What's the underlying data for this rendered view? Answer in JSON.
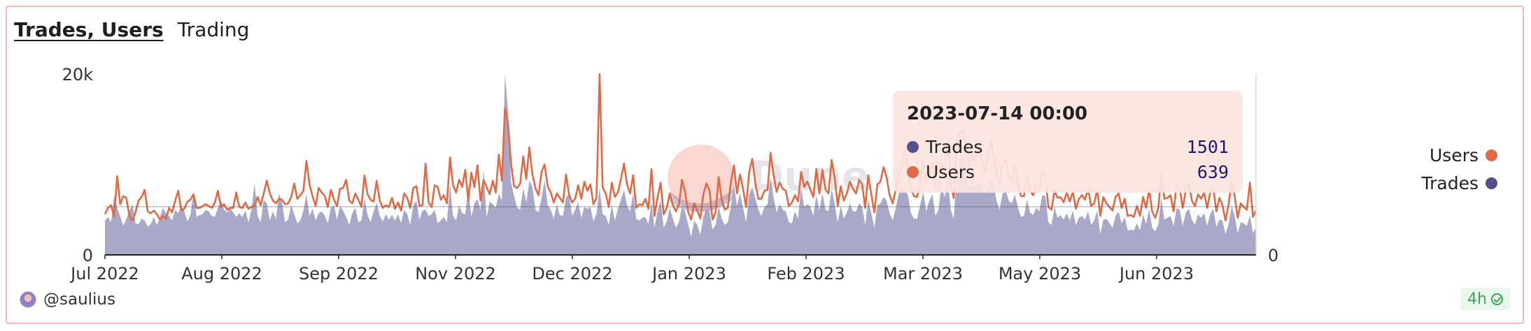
{
  "tabs": [
    {
      "label": "Trades, Users",
      "active": true
    },
    {
      "label": "Trading",
      "active": false
    }
  ],
  "tooltip": {
    "title": "2023-07-14 00:00",
    "rows": [
      {
        "name": "Trades",
        "value": "1501",
        "color": "#54508f"
      },
      {
        "name": "Users",
        "value": "639",
        "color": "#e06a45"
      }
    ]
  },
  "legend": [
    {
      "name": "Users",
      "color": "#e06a45"
    },
    {
      "name": "Trades",
      "color": "#54508f"
    }
  ],
  "watermark": "Dune",
  "footer": {
    "author": "@saulius",
    "refresh": "4h"
  },
  "chart_data": {
    "type": "area+line",
    "x_tick_labels": [
      "Jul 2022",
      "Aug 2022",
      "Sep 2022",
      "Nov 2022",
      "Dec 2022",
      "Jan 2023",
      "Feb 2023",
      "Mar 2023",
      "May 2023",
      "Jun 2023"
    ],
    "y_left_ticks": [
      "20k",
      "0"
    ],
    "y_right_ticks": [
      "0"
    ],
    "ylim": [
      0,
      20000
    ],
    "grid": false,
    "legend_position": "right",
    "points_per_series": 380,
    "series": [
      {
        "name": "Trades",
        "kind": "area",
        "color": "#a9a8c8",
        "values": [
          3800,
          4200,
          3600,
          6500,
          5200,
          4300,
          3200,
          4000,
          4800,
          5600,
          3500,
          3400,
          4000,
          3800,
          3100,
          3400,
          4200,
          3300,
          4100,
          5200,
          4600,
          4300,
          3800,
          5000,
          4600,
          5400,
          4800,
          3700,
          4400,
          6900,
          4200,
          4400,
          4500,
          5000,
          4800,
          4300,
          4200,
          5200,
          6000,
          5000,
          4700,
          5200,
          4700,
          4200,
          4600,
          4200,
          4900,
          3600,
          5000,
          7900,
          4300,
          3600,
          6100,
          5700,
          3800,
          4800,
          4000,
          6800,
          5800,
          3600,
          3900,
          5500,
          4500,
          3500,
          3800,
          4900,
          6700,
          4300,
          5100,
          3800,
          4600,
          4800,
          4300,
          3500,
          5200,
          5500,
          3900,
          5400,
          4900,
          4200,
          3300,
          4600,
          5200,
          3600,
          3800,
          6200,
          4400,
          3600,
          4800,
          5800,
          4300,
          3700,
          4500,
          3900,
          4400,
          3800,
          4500,
          3500,
          5000,
          4500,
          3300,
          5500,
          6000,
          3900,
          4900,
          5000,
          4300,
          4500,
          5000,
          3500,
          3800,
          4200,
          3600,
          7800,
          4300,
          3800,
          5500,
          4600,
          4500,
          7400,
          4200,
          5700,
          6200,
          5000,
          9400,
          4100,
          5900,
          5600,
          5200,
          6800,
          6000,
          20000,
          16000,
          8000,
          6500,
          5200,
          5000,
          7400,
          5800,
          8200,
          7500,
          5000,
          4700,
          6300,
          8300,
          5500,
          5000,
          4000,
          5600,
          4400,
          4300,
          6300,
          6800,
          4300,
          5000,
          5800,
          4100,
          5300,
          5100,
          5300,
          3700,
          4600,
          7400,
          4500,
          4300,
          3300,
          5500,
          3800,
          5100,
          6100,
          7200,
          5500,
          4800,
          6800,
          4000,
          3800,
          4100,
          4200,
          3400,
          5900,
          3000,
          4800,
          6100,
          3000,
          3700,
          5200,
          4000,
          3000,
          3600,
          5400,
          4800,
          3400,
          2000,
          3800,
          3300,
          2200,
          4200,
          5200,
          4800,
          2800,
          3300,
          5400,
          4000,
          3300,
          3600,
          5300,
          7800,
          5400,
          6800,
          5200,
          3600,
          6700,
          7500,
          6300,
          5000,
          4300,
          5300,
          5600,
          8600,
          6300,
          4700,
          5600,
          5000,
          4800,
          3600,
          3500,
          4800,
          4000,
          7500,
          5300,
          5600,
          5400,
          4300,
          6600,
          4900,
          6800,
          5000,
          4800,
          7300,
          5600,
          3600,
          5400,
          4000,
          4700,
          5700,
          4800,
          4800,
          5700,
          5300,
          3300,
          6100,
          4600,
          3000,
          5500,
          5700,
          6400,
          6000,
          4600,
          3800,
          5200,
          6800,
          7500,
          7200,
          6600,
          4600,
          4000,
          4000,
          5500,
          7000,
          4800,
          6000,
          6700,
          4300,
          5000,
          7900,
          6300,
          8900,
          5000,
          4000,
          9100,
          10500,
          11200,
          9900,
          7200,
          8800,
          7400,
          8400,
          7400,
          6800,
          7400,
          8300,
          8000,
          6000,
          5000,
          6800,
          7200,
          6000,
          5700,
          6700,
          5300,
          4200,
          4300,
          6100,
          4700,
          4400,
          5200,
          4800,
          6600,
          6500,
          3600,
          3300,
          5300,
          4100,
          4400,
          3900,
          4600,
          3800,
          4900,
          3300,
          4100,
          4300,
          3900,
          4800,
          3300,
          3800,
          4900,
          2300,
          3900,
          4000,
          3500,
          3000,
          4300,
          4800,
          3500,
          4200,
          2700,
          2800,
          2700,
          3500,
          2700,
          4500,
          3400,
          5100,
          3000,
          2600,
          3400,
          6300,
          3900,
          4100,
          4300,
          3200,
          5200,
          5000,
          3200,
          4700,
          5100,
          3900,
          3300,
          4500,
          4100,
          4600,
          3200,
          4500,
          5100,
          3100,
          3900,
          3800,
          2300,
          3400,
          5400,
          4300,
          2400,
          3600,
          3500,
          3200,
          4400,
          2400,
          3100
        ]
      },
      {
        "name": "Users",
        "kind": "line",
        "color": "#e06a45",
        "values": [
          4500,
          5200,
          5500,
          4200,
          8700,
          5600,
          6500,
          6300,
          4300,
          3800,
          4700,
          6000,
          6400,
          7200,
          4800,
          4600,
          4900,
          4500,
          3900,
          4300,
          4000,
          5200,
          4700,
          6000,
          7100,
          4900,
          5100,
          5900,
          6100,
          6700,
          5200,
          5200,
          5400,
          5600,
          5400,
          5200,
          5800,
          7100,
          5300,
          5600,
          5000,
          5200,
          5200,
          6900,
          5300,
          5200,
          5800,
          5100,
          5300,
          5500,
          6400,
          5500,
          6800,
          8200,
          6800,
          6000,
          5700,
          6200,
          6100,
          5600,
          5700,
          6400,
          7900,
          6200,
          6600,
          7100,
          10400,
          7800,
          6500,
          5400,
          7400,
          6900,
          6500,
          5300,
          7200,
          6100,
          5400,
          7300,
          7400,
          8300,
          6000,
          5700,
          6800,
          6100,
          5300,
          8800,
          6700,
          6100,
          5900,
          8200,
          6000,
          5200,
          5500,
          5300,
          6300,
          5100,
          5800,
          4900,
          6800,
          6300,
          5200,
          7400,
          7600,
          5400,
          5500,
          10100,
          5800,
          5300,
          7700,
          7500,
          6100,
          6600,
          5700,
          10800,
          7700,
          6900,
          8300,
          7500,
          9400,
          6000,
          9100,
          7500,
          9900,
          6000,
          8300,
          7500,
          6700,
          8200,
          6900,
          11100,
          8200,
          16200,
          14500,
          10100,
          7600,
          7400,
          7900,
          10900,
          8400,
          11900,
          8900,
          7400,
          6600,
          9200,
          10000,
          7600,
          6900,
          5800,
          6800,
          6300,
          5800,
          8900,
          6700,
          5800,
          6200,
          7700,
          6200,
          8100,
          7100,
          7800,
          5600,
          6300,
          20000,
          7500,
          6800,
          5300,
          8000,
          6400,
          6900,
          8400,
          10100,
          7800,
          6800,
          8800,
          5200,
          5600,
          5500,
          6200,
          5100,
          9500,
          4300,
          6400,
          8000,
          4500,
          5200,
          6800,
          5500,
          4800,
          5600,
          8300,
          7000,
          4800,
          3900,
          5700,
          4900,
          4000,
          6700,
          7900,
          7100,
          3900,
          4700,
          8600,
          6100,
          5000,
          5200,
          8000,
          9900,
          6800,
          8900,
          7300,
          5300,
          9200,
          10600,
          8000,
          6200,
          6200,
          7100,
          7200,
          11300,
          8800,
          7000,
          8000,
          7300,
          7100,
          5400,
          5800,
          6600,
          5900,
          9200,
          7500,
          8100,
          7300,
          6400,
          9500,
          6800,
          9400,
          7200,
          6800,
          10500,
          8500,
          5400,
          7600,
          6000,
          6800,
          8100,
          7300,
          6800,
          8300,
          7800,
          5200,
          8800,
          6700,
          4700,
          7800,
          8100,
          9700,
          8600,
          6600,
          5700,
          7200,
          8900,
          9800,
          11800,
          9100,
          7300,
          6500,
          6400,
          7800,
          10300,
          8000,
          8700,
          10200,
          7500,
          7000,
          10300,
          9200,
          12500,
          7800,
          6300,
          12200,
          13600,
          13800,
          12400,
          9600,
          11300,
          10400,
          12000,
          10700,
          9100,
          10500,
          12600,
          11200,
          9000,
          7800,
          10000,
          10700,
          8700,
          8300,
          9800,
          8000,
          6500,
          6500,
          8900,
          7100,
          6600,
          7600,
          7400,
          9200,
          8700,
          5300,
          5000,
          7100,
          6300,
          6400,
          5800,
          6900,
          5900,
          7000,
          5100,
          6200,
          6600,
          6100,
          7300,
          5400,
          5700,
          7200,
          4300,
          6400,
          5700,
          5300,
          4900,
          6400,
          6800,
          5200,
          6200,
          4300,
          4400,
          4200,
          5400,
          4300,
          6400,
          5200,
          7200,
          4800,
          4100,
          5200,
          9000,
          6200,
          6300,
          6600,
          4800,
          7900,
          7400,
          5200,
          7100,
          7900,
          6000,
          5400,
          6700,
          6200,
          6900,
          5200,
          6900,
          7400,
          4800,
          6300,
          5500,
          3800,
          5500,
          8100,
          6500,
          4100,
          5700,
          5300,
          5000,
          8000,
          4200,
          4900
        ]
      }
    ]
  }
}
